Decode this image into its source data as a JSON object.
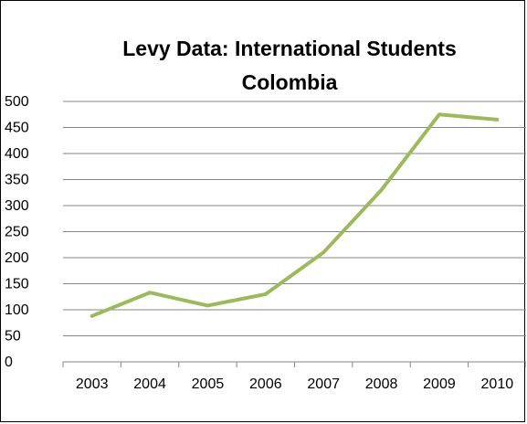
{
  "chart_data": {
    "type": "line",
    "title_lines": [
      "Levy Data: International Students",
      "Colombia"
    ],
    "xlabel": "",
    "ylabel": "",
    "categories": [
      "2003",
      "2004",
      "2005",
      "2006",
      "2007",
      "2008",
      "2009",
      "2010"
    ],
    "series": [
      {
        "values": [
          88,
          133,
          108,
          130,
          210,
          330,
          475,
          465
        ],
        "color": "#9BBB59"
      }
    ],
    "ylim": [
      0,
      500
    ],
    "yticks": [
      0,
      50,
      100,
      150,
      200,
      250,
      300,
      350,
      400,
      450,
      500
    ],
    "grid": true,
    "legend": "none"
  }
}
